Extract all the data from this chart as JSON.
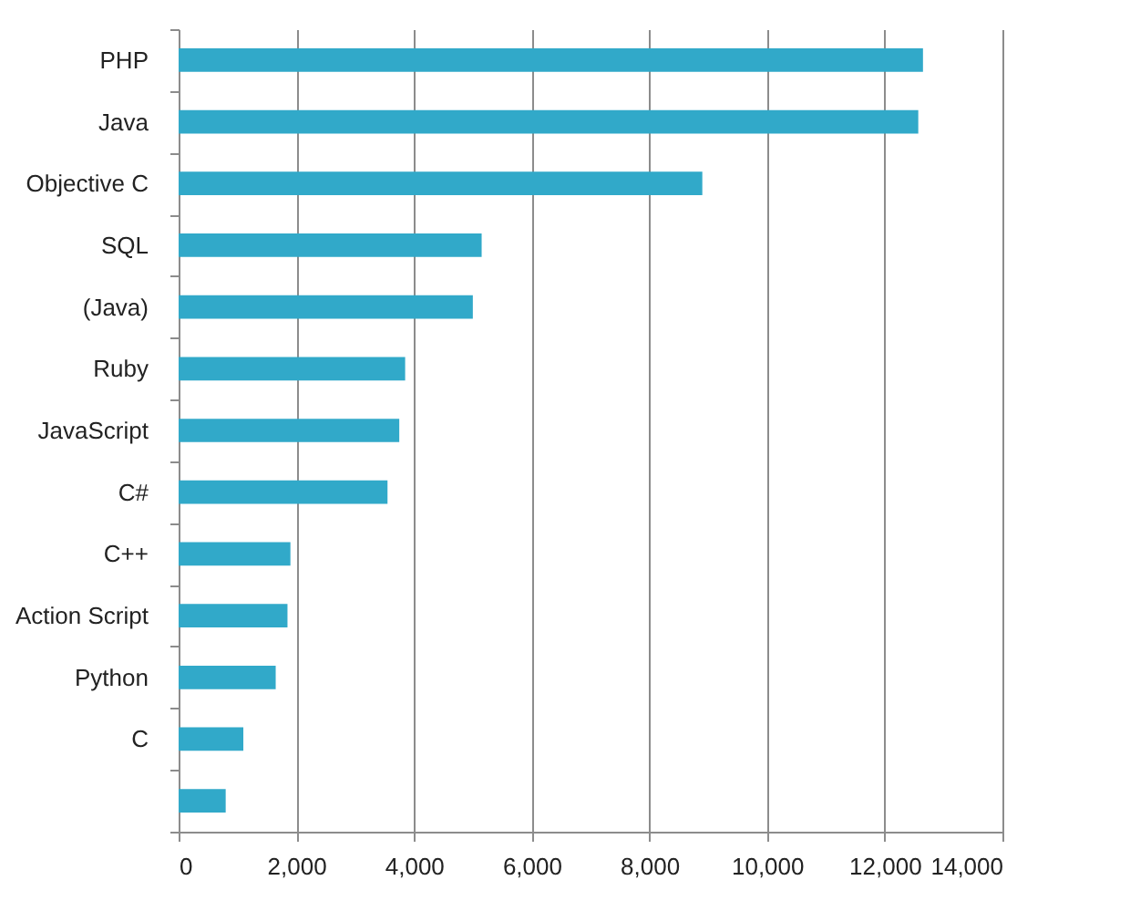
{
  "chart_data": {
    "type": "bar",
    "orientation": "horizontal",
    "categories": [
      "PHP",
      "Java",
      "Objective C",
      "SQL",
      "(Java)",
      "Ruby",
      "JavaScript",
      "C#",
      "C++",
      "Action Script",
      "Python",
      "C",
      null
    ],
    "values": [
      12650,
      12570,
      8900,
      5150,
      5000,
      3850,
      3750,
      3550,
      1900,
      1850,
      1650,
      1100,
      800
    ],
    "color": "#31a9c9",
    "xlim": [
      0,
      14000
    ],
    "xticks": [
      {
        "value": 0,
        "label": "0"
      },
      {
        "value": 2000,
        "label": "2,000"
      },
      {
        "value": 4000,
        "label": "4,000"
      },
      {
        "value": 6000,
        "label": "6,000"
      },
      {
        "value": 8000,
        "label": "8,000"
      },
      {
        "value": 10000,
        "label": "10,000"
      },
      {
        "value": 12000,
        "label": "12,000"
      },
      {
        "value": 14000,
        "label": "14,000"
      }
    ],
    "grid": "x"
  }
}
